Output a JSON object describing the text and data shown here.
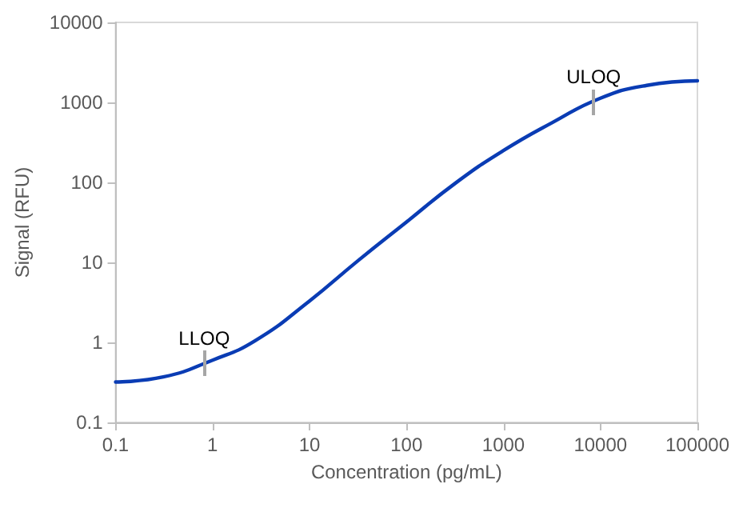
{
  "chart_data": {
    "type": "line",
    "xlabel": "Concentration (pg/mL)",
    "ylabel": "Signal (RFU)",
    "log": "xy",
    "x": [
      0.1,
      0.31,
      1,
      2.75,
      10,
      31.6,
      100,
      320,
      1000,
      3200,
      10000,
      30000,
      100000
    ],
    "series": [
      {
        "color": "#0a3cb4",
        "values": [
          0.32,
          0.37,
          0.6,
          1.05,
          3.3,
          10.5,
          32,
          98,
          250,
          560,
          1130,
          1630,
          1860
        ]
      }
    ],
    "xlim": [
      0.1,
      100000
    ],
    "xticks": [
      0.1,
      1,
      10,
      100,
      1000,
      10000,
      100000
    ],
    "ylim": [
      0.1,
      10000
    ],
    "yticks": [
      0.1,
      1,
      10,
      100,
      1000,
      10000
    ],
    "grid": false,
    "marker": "none",
    "line_style": "solid",
    "annotations": [
      {
        "text": "LLOQ",
        "x": 0.82,
        "y": 0.54
      },
      {
        "text": "ULOQ",
        "x": 8500,
        "y": 1000
      }
    ]
  }
}
